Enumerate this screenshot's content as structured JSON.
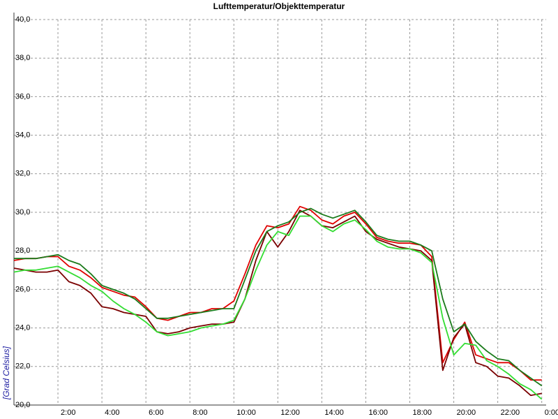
{
  "chart_data": {
    "type": "line",
    "title": "Lufttemperatur/Objekttemperatur",
    "y_label": "[Grad Celsius]",
    "x": [
      0,
      0.5,
      1,
      1.5,
      2,
      2.5,
      3,
      3.5,
      4,
      4.5,
      5,
      5.5,
      6,
      6.5,
      7,
      7.5,
      8,
      8.5,
      9,
      9.5,
      10,
      10.5,
      11,
      11.5,
      12,
      12.5,
      13,
      13.5,
      14,
      14.5,
      15,
      15.5,
      16,
      16.5,
      17,
      17.5,
      18,
      18.5,
      19,
      19.5,
      20,
      20.5,
      21,
      21.5,
      22,
      22.5,
      23,
      23.5,
      24
    ],
    "series": [
      {
        "color": "#e00000",
        "values": [
          27.5,
          27.6,
          27.6,
          27.7,
          27.7,
          27.2,
          27.0,
          26.6,
          26.1,
          25.9,
          25.7,
          25.6,
          25.1,
          24.5,
          24.4,
          24.6,
          24.8,
          24.8,
          25.0,
          25.0,
          25.4,
          26.8,
          28.3,
          29.3,
          29.2,
          29.4,
          30.3,
          30.1,
          29.6,
          29.4,
          29.8,
          30.0,
          29.4,
          28.7,
          28.5,
          28.4,
          28.4,
          28.3,
          27.7,
          22.2,
          23.4,
          24.3,
          22.6,
          22.4,
          22.2,
          22.2,
          21.8,
          21.3,
          21.3
        ]
      },
      {
        "color": "#7a0000",
        "values": [
          27.1,
          27.0,
          26.9,
          26.9,
          27.0,
          26.4,
          26.2,
          25.8,
          25.1,
          25.0,
          24.8,
          24.7,
          24.6,
          23.8,
          23.7,
          23.8,
          24.0,
          24.1,
          24.2,
          24.2,
          24.3,
          25.5,
          27.5,
          29.0,
          28.2,
          29.0,
          30.1,
          29.8,
          29.3,
          29.2,
          29.5,
          29.8,
          29.0,
          28.6,
          28.4,
          28.2,
          28.1,
          28.0,
          27.5,
          21.8,
          23.5,
          24.2,
          22.2,
          22.0,
          21.5,
          21.4,
          21.0,
          20.5,
          20.6
        ]
      },
      {
        "color": "#1a7a1a",
        "values": [
          27.6,
          27.6,
          27.6,
          27.7,
          27.8,
          27.5,
          27.3,
          26.8,
          26.2,
          26.0,
          25.8,
          25.5,
          25.0,
          24.5,
          24.5,
          24.6,
          24.7,
          24.8,
          24.9,
          25.0,
          25.0,
          26.5,
          28.0,
          29.0,
          29.3,
          29.5,
          30.0,
          30.2,
          29.9,
          29.7,
          29.9,
          30.1,
          29.5,
          28.8,
          28.6,
          28.5,
          28.5,
          28.3,
          28.0,
          25.5,
          23.8,
          24.2,
          23.3,
          22.8,
          22.4,
          22.3,
          21.8,
          21.4,
          21.0
        ]
      },
      {
        "color": "#33dd33",
        "values": [
          26.9,
          27.0,
          27.0,
          27.1,
          27.2,
          26.9,
          26.6,
          26.2,
          25.9,
          25.4,
          25.0,
          24.7,
          24.3,
          23.8,
          23.6,
          23.7,
          23.8,
          24.0,
          24.1,
          24.2,
          24.4,
          25.5,
          27.0,
          28.3,
          29.0,
          28.8,
          29.8,
          29.8,
          29.3,
          29.0,
          29.4,
          29.6,
          29.1,
          28.5,
          28.2,
          28.1,
          28.1,
          27.9,
          27.4,
          24.5,
          22.6,
          23.2,
          23.1,
          22.3,
          22.0,
          21.6,
          21.1,
          20.8,
          20.3
        ]
      }
    ],
    "xlim": [
      0,
      24.2
    ],
    "xticks": [
      {
        "value": 2,
        "label": "2:00"
      },
      {
        "value": 4,
        "label": "4:00"
      },
      {
        "value": 6,
        "label": "6:00"
      },
      {
        "value": 8,
        "label": "8:00"
      },
      {
        "value": 10,
        "label": "10:00"
      },
      {
        "value": 12,
        "label": "12:00"
      },
      {
        "value": 14,
        "label": "14:00"
      },
      {
        "value": 16,
        "label": "16:00"
      },
      {
        "value": 18,
        "label": "18:00"
      },
      {
        "value": 20,
        "label": "20:00"
      },
      {
        "value": 22,
        "label": "22:00"
      },
      {
        "value": 24,
        "label": "0:00"
      }
    ],
    "ylim": [
      20,
      40
    ],
    "yticks": [
      {
        "value": 20,
        "label": "20,0"
      },
      {
        "value": 22,
        "label": "22,0"
      },
      {
        "value": 24,
        "label": "24,0"
      },
      {
        "value": 26,
        "label": "26,0"
      },
      {
        "value": 28,
        "label": "28,0"
      },
      {
        "value": 30,
        "label": "30,0"
      },
      {
        "value": 32,
        "label": "32,0"
      },
      {
        "value": 34,
        "label": "34,0"
      },
      {
        "value": 36,
        "label": "36,0"
      },
      {
        "value": 38,
        "label": "38,0"
      },
      {
        "value": 40,
        "label": "40,0"
      }
    ],
    "grid": true
  }
}
